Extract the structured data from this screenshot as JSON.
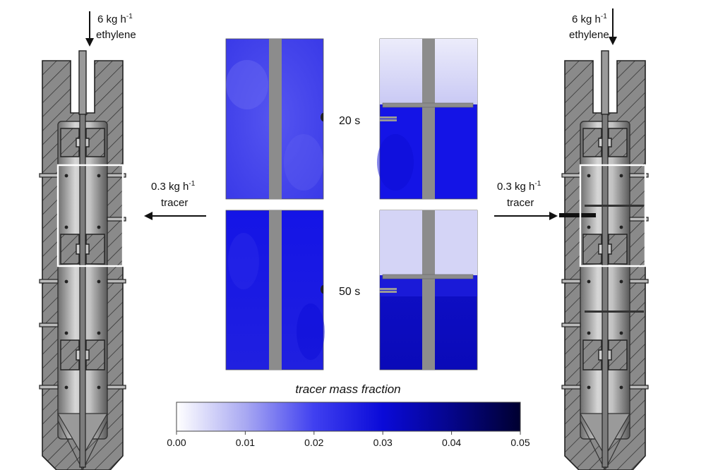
{
  "labels": {
    "ethylene_flow": "6 kg h",
    "ethylene_flow_exp": "-1",
    "ethylene": "ethylene",
    "tracer_flow": "0.3 kg h",
    "tracer_flow_exp": "-1",
    "tracer": "tracer"
  },
  "times": [
    "20 s",
    "50 s"
  ],
  "colorbar": {
    "title": "tracer mass fraction",
    "ticks": [
      "0.00",
      "0.01",
      "0.02",
      "0.03",
      "0.04",
      "0.05"
    ],
    "colors": [
      "#ffffff",
      "#a9a9f2",
      "#4040f0",
      "#0a0ad8",
      "#05058a",
      "#000030"
    ]
  },
  "colors": {
    "metal": "#8a8a8a",
    "cavity_light": "#d4d4d4",
    "cavity_dark": "#707070",
    "shaft": "#8c8c8c",
    "highlight": "#ffffff"
  }
}
